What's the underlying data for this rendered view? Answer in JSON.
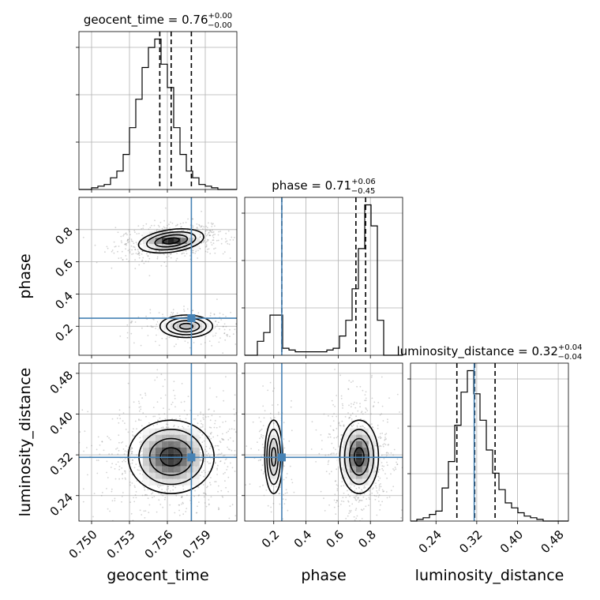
{
  "chart_data": {
    "type": "corner",
    "parameters": [
      {
        "name": "geocent_time",
        "xlabel": "geocent_time",
        "range": [
          0.749,
          0.7615
        ],
        "ticks": [
          0.75,
          0.753,
          0.756,
          0.759
        ],
        "tick_labels": [
          "0.750",
          "0.753",
          "0.756",
          "0.759"
        ],
        "truth": 0.7579,
        "title": {
          "text": "geocent_time = 0.76",
          "sup": "+0.00",
          "sub": "−0.00"
        },
        "quantiles": [
          0.7554,
          0.7563,
          0.7579
        ],
        "hist": {
          "edges_start": 0.749,
          "bin_width": 0.0005,
          "counts": [
            0,
            0,
            1,
            2,
            3,
            7,
            11,
            21,
            37,
            54,
            73,
            85,
            90,
            75,
            61,
            37,
            21,
            11,
            7,
            3,
            2,
            1,
            0,
            0,
            0
          ]
        },
        "hist_ticks": [
          1,
          2,
          3
        ]
      },
      {
        "name": "phase",
        "ylabel": "phase",
        "xlabel": "phase",
        "range": [
          0.02,
          1.0
        ],
        "ticks": [
          0.2,
          0.4,
          0.6,
          0.8
        ],
        "tick_labels": [
          "0.2",
          "0.4",
          "0.6",
          "0.8"
        ],
        "truth": 0.25,
        "title": {
          "text": "phase = 0.71",
          "sup": "+0.06",
          "sub": "−0.45"
        },
        "quantiles": [
          0.25,
          0.71,
          0.77
        ],
        "hist": {
          "edges_start": 0.02,
          "bin_width": 0.0392,
          "counts": [
            0,
            0,
            8,
            13,
            23,
            23,
            4,
            3,
            2,
            2,
            2,
            2,
            2,
            3,
            4,
            11,
            20,
            38,
            61,
            86,
            74,
            20,
            0,
            0,
            0
          ]
        },
        "hist_ticks": [
          1,
          2,
          3
        ]
      },
      {
        "name": "luminosity_distance",
        "ylabel": "luminosity_distance",
        "xlabel": "luminosity_distance",
        "range": [
          0.19,
          0.5
        ],
        "ticks": [
          0.24,
          0.32,
          0.4,
          0.48
        ],
        "tick_labels": [
          "0.24",
          "0.32",
          "0.40",
          "0.48"
        ],
        "truth": 0.315,
        "title": {
          "text": "luminosity_distance = 0.32",
          "sup": "+0.04",
          "sub": "−0.04"
        },
        "quantiles": [
          0.281,
          0.316,
          0.356
        ],
        "hist": {
          "edges_start": 0.19,
          "bin_width": 0.0124,
          "counts": [
            0,
            1,
            2,
            4,
            6,
            20,
            36,
            58,
            78,
            91,
            77,
            61,
            43,
            29,
            19,
            11,
            8,
            5,
            3,
            2,
            1,
            0,
            0,
            0,
            0
          ]
        },
        "hist_ticks": [
          1,
          2,
          3
        ]
      }
    ],
    "grid": true
  }
}
